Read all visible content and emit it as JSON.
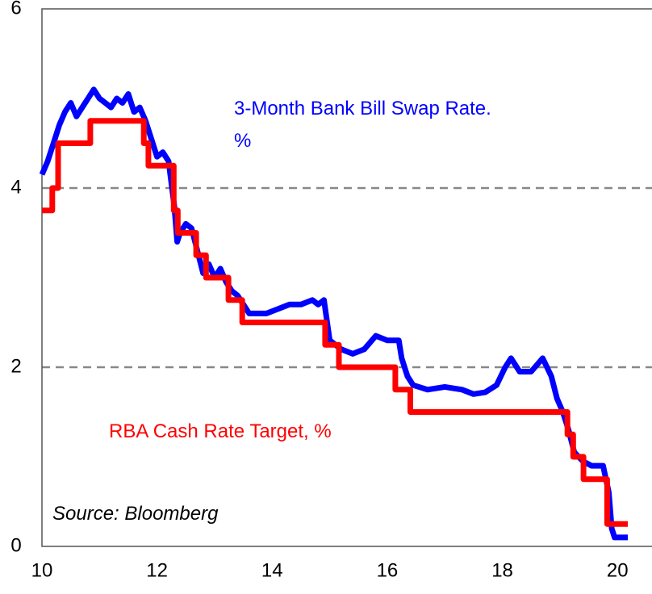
{
  "chart_data": {
    "type": "line",
    "xlim": [
      10,
      20.6
    ],
    "xticks": [
      10,
      12,
      14,
      16,
      18,
      20
    ],
    "ylim": [
      0,
      6
    ],
    "yticks": [
      0,
      2,
      4,
      6
    ],
    "grid": true,
    "annotations": [
      "Source: Bloomberg"
    ],
    "series": [
      {
        "name": "3-Month Bank Bill Swap Rate. %",
        "color": "#0000ff",
        "x": [
          10.0,
          10.1,
          10.2,
          10.3,
          10.4,
          10.5,
          10.6,
          10.7,
          10.8,
          10.9,
          11.0,
          11.1,
          11.2,
          11.3,
          11.4,
          11.5,
          11.6,
          11.7,
          11.8,
          11.9,
          12.0,
          12.1,
          12.2,
          12.3,
          12.35,
          12.4,
          12.5,
          12.6,
          12.7,
          12.8,
          12.9,
          13.0,
          13.1,
          13.2,
          13.3,
          13.4,
          13.5,
          13.6,
          13.7,
          13.9,
          14.1,
          14.3,
          14.5,
          14.7,
          14.8,
          14.9,
          15.0,
          15.2,
          15.4,
          15.6,
          15.8,
          16.0,
          16.2,
          16.25,
          16.35,
          16.45,
          16.7,
          17.0,
          17.3,
          17.5,
          17.7,
          17.9,
          18.05,
          18.15,
          18.3,
          18.5,
          18.7,
          18.85,
          18.95,
          19.05,
          19.15,
          19.25,
          19.4,
          19.55,
          19.75,
          19.85,
          19.9,
          19.95,
          20.18
        ],
        "values": [
          4.15,
          4.3,
          4.5,
          4.7,
          4.85,
          4.95,
          4.8,
          4.9,
          5.0,
          5.1,
          5.0,
          4.95,
          4.9,
          5.0,
          4.95,
          5.05,
          4.85,
          4.9,
          4.75,
          4.55,
          4.35,
          4.4,
          4.3,
          3.8,
          3.4,
          3.5,
          3.6,
          3.55,
          3.3,
          3.05,
          3.15,
          3.0,
          3.1,
          2.95,
          2.85,
          2.8,
          2.7,
          2.6,
          2.6,
          2.6,
          2.65,
          2.7,
          2.7,
          2.75,
          2.7,
          2.75,
          2.3,
          2.2,
          2.15,
          2.2,
          2.35,
          2.3,
          2.3,
          2.1,
          1.9,
          1.8,
          1.75,
          1.78,
          1.75,
          1.7,
          1.72,
          1.8,
          2.0,
          2.1,
          1.95,
          1.95,
          2.1,
          1.9,
          1.65,
          1.5,
          1.3,
          1.05,
          0.95,
          0.9,
          0.9,
          0.6,
          0.2,
          0.1,
          0.1
        ]
      },
      {
        "name": "RBA Cash Rate Target, %",
        "color": "#ff0000",
        "x": [
          10,
          10.18,
          10.18,
          10.28,
          10.28,
          10.84,
          10.84,
          11.77,
          11.77,
          11.85,
          11.85,
          12.29,
          12.29,
          12.36,
          12.36,
          12.68,
          12.68,
          12.85,
          12.85,
          13.24,
          13.24,
          13.48,
          13.48,
          14.92,
          14.92,
          15.16,
          15.16,
          16.14,
          16.14,
          16.4,
          16.4,
          19.13,
          19.13,
          19.23,
          19.23,
          19.41,
          19.41,
          19.82,
          19.82,
          20.18
        ],
        "values": [
          3.75,
          3.75,
          4,
          4,
          4.5,
          4.5,
          4.75,
          4.75,
          4.5,
          4.5,
          4.25,
          4.25,
          3.75,
          3.75,
          3.5,
          3.5,
          3.25,
          3.25,
          3,
          3,
          2.75,
          2.75,
          2.5,
          2.5,
          2.25,
          2.25,
          2,
          2,
          1.75,
          1.75,
          1.5,
          1.5,
          1.25,
          1.25,
          1,
          1,
          0.75,
          0.75,
          0.25,
          0.25
        ]
      }
    ]
  }
}
